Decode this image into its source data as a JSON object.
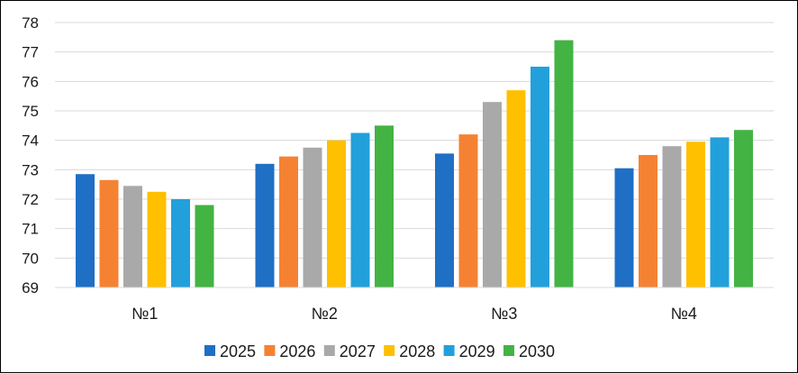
{
  "chart_data": {
    "type": "bar",
    "title": "",
    "xlabel": "",
    "ylabel": "",
    "categories": [
      "№1",
      "№2",
      "№3",
      "№4"
    ],
    "ylim": [
      69,
      78
    ],
    "yticks": [
      69,
      70,
      71,
      72,
      73,
      74,
      75,
      76,
      77,
      78
    ],
    "grid": true,
    "legend_position": "bottom",
    "series": [
      {
        "name": "2025",
        "color": "#1f6fc5",
        "values": [
          72.85,
          73.2,
          73.55,
          73.05
        ]
      },
      {
        "name": "2026",
        "color": "#f58232",
        "values": [
          72.65,
          73.45,
          74.2,
          73.5
        ]
      },
      {
        "name": "2027",
        "color": "#a9a9a9",
        "values": [
          72.45,
          73.75,
          75.3,
          73.8
        ]
      },
      {
        "name": "2028",
        "color": "#ffc000",
        "values": [
          72.25,
          74.0,
          75.7,
          73.95
        ]
      },
      {
        "name": "2029",
        "color": "#22a0db",
        "values": [
          72.0,
          74.25,
          76.5,
          74.1
        ]
      },
      {
        "name": "2030",
        "color": "#43b343",
        "values": [
          71.8,
          74.5,
          77.4,
          74.35
        ]
      }
    ]
  }
}
